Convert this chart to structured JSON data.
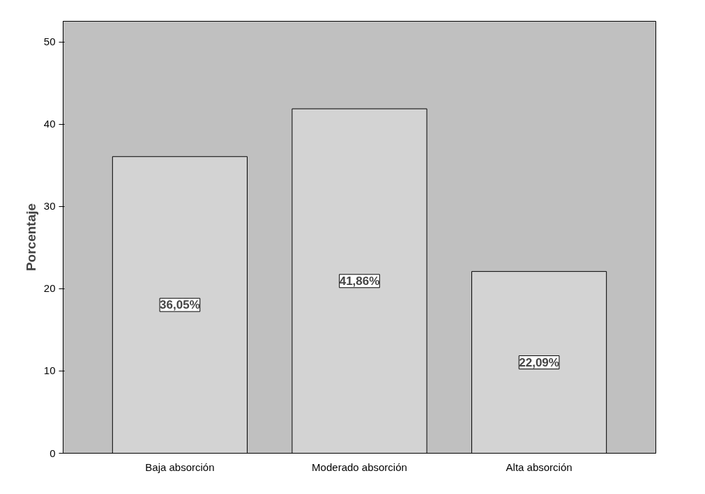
{
  "chart_data": {
    "type": "bar",
    "ylabel": "Porcentaje",
    "categories": [
      "Baja absorción",
      "Moderado absorción",
      "Alta absorción"
    ],
    "values": [
      36.05,
      41.86,
      22.09
    ],
    "value_labels": [
      "36,05%",
      "41,86%",
      "22,09%"
    ],
    "color": "#d3d3d3",
    "ylim": [
      0,
      52.5
    ],
    "yticks": [
      0,
      10,
      20,
      30,
      40,
      50
    ],
    "grid": false
  }
}
